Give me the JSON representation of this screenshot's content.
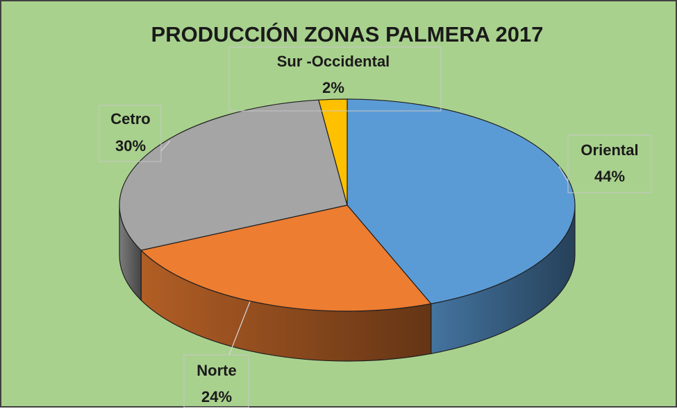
{
  "chart_data": {
    "type": "pie3d",
    "title": "PRODUCCIÓN ZONAS PALMERA 2017",
    "categories": [
      "Oriental",
      "Norte",
      "Cetro",
      "Sur -Occidental"
    ],
    "values": [
      44,
      24,
      30,
      2
    ],
    "value_labels": [
      "44%",
      "24%",
      "30%",
      "2%"
    ],
    "colors": [
      "#5b9bd5",
      "#ed7d31",
      "#a5a5a5",
      "#ffc000"
    ]
  }
}
